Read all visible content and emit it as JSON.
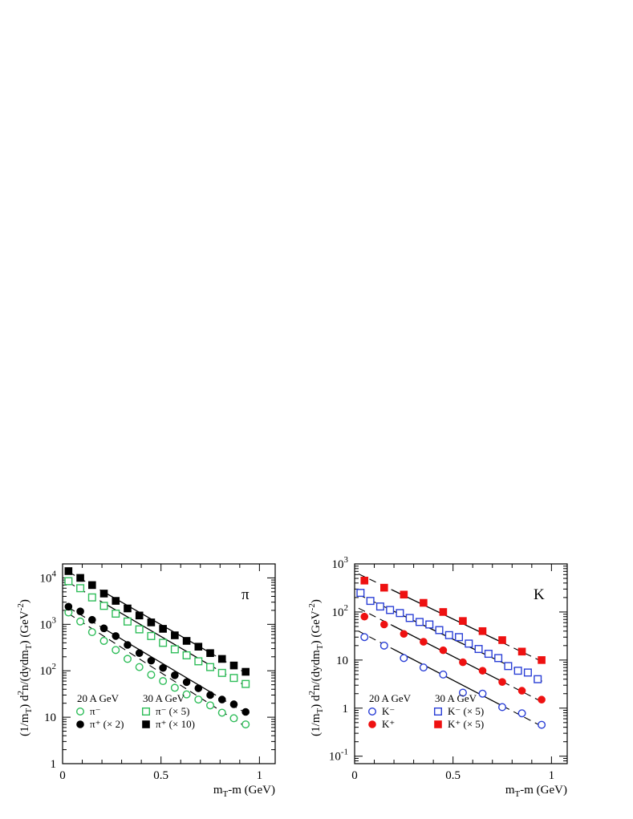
{
  "chart_data": [
    {
      "type": "scatter",
      "panel_label": "π",
      "xlabel": "m_T-m (GeV)",
      "ylabel": "(1/m_T) d²n/(dydm_T) (GeV⁻²)",
      "xlim": [
        0,
        1.08
      ],
      "ylim": [
        1,
        20000
      ],
      "y_scale": "log",
      "x_ticks": [
        0,
        0.5,
        1
      ],
      "x_tick_labels": [
        "0",
        "0.5",
        "1"
      ],
      "y_ticks": [
        1,
        10,
        100,
        1000,
        10000
      ],
      "y_tick_labels": [
        {
          "base": "1",
          "exp": ""
        },
        {
          "base": "10",
          "exp": ""
        },
        {
          "base": "10",
          "exp": "2"
        },
        {
          "base": "10",
          "exp": "3"
        },
        {
          "base": "10",
          "exp": "4"
        }
      ],
      "grid": false,
      "legend_placement": "bottom-left",
      "legend_groups": [
        "20 A GeV",
        "30 A GeV"
      ],
      "series": [
        {
          "name": "π⁻",
          "group": "20 A GeV",
          "marker": "circle-open",
          "color": "#2ebd59",
          "x": [
            0.03,
            0.09,
            0.15,
            0.21,
            0.27,
            0.33,
            0.39,
            0.45,
            0.51,
            0.57,
            0.63,
            0.69,
            0.75,
            0.81,
            0.87,
            0.93
          ],
          "values": [
            1800,
            1150,
            680,
            440,
            280,
            180,
            120,
            82,
            60,
            43,
            31,
            24,
            18,
            12.5,
            9.5,
            7
          ],
          "fit": {
            "x0": 0.03,
            "y0": 1700,
            "x1": 0.95,
            "y1": 5.5,
            "style": "dashed"
          }
        },
        {
          "name": "π⁺ (× 2)",
          "group": "20 A GeV",
          "marker": "circle-filled",
          "color": "#000000",
          "x": [
            0.03,
            0.09,
            0.15,
            0.21,
            0.27,
            0.33,
            0.39,
            0.45,
            0.51,
            0.57,
            0.63,
            0.69,
            0.75,
            0.81,
            0.87,
            0.93
          ],
          "values": [
            2400,
            1900,
            1250,
            820,
            560,
            360,
            240,
            165,
            115,
            80,
            57,
            42,
            30,
            24,
            19,
            13
          ],
          "fit": {
            "x0": 0.03,
            "y0": 2300,
            "x1": 0.95,
            "y1": 11,
            "style": "solid-dashed"
          }
        },
        {
          "name": "π⁻ (× 5)",
          "group": "30 A GeV",
          "marker": "square-open",
          "color": "#2ebd59",
          "x": [
            0.03,
            0.09,
            0.15,
            0.21,
            0.27,
            0.33,
            0.39,
            0.45,
            0.51,
            0.57,
            0.63,
            0.69,
            0.75,
            0.81,
            0.87,
            0.93
          ],
          "values": [
            8500,
            6000,
            3800,
            2500,
            1700,
            1150,
            780,
            560,
            400,
            290,
            215,
            160,
            120,
            90,
            70,
            52
          ],
          "fit": {
            "x0": 0.03,
            "y0": 8000,
            "x1": 0.95,
            "y1": 42,
            "style": "solid-dashed"
          }
        },
        {
          "name": "π⁺ (× 10)",
          "group": "30 A GeV",
          "marker": "square-filled",
          "color": "#000000",
          "x": [
            0.03,
            0.09,
            0.15,
            0.21,
            0.27,
            0.33,
            0.39,
            0.45,
            0.51,
            0.57,
            0.63,
            0.69,
            0.75,
            0.81,
            0.87,
            0.93
          ],
          "values": [
            14000,
            10000,
            7000,
            4600,
            3200,
            2200,
            1550,
            1100,
            800,
            580,
            440,
            330,
            240,
            180,
            130,
            95
          ],
          "fit": {
            "x0": 0.03,
            "y0": 13500,
            "x1": 0.95,
            "y1": 80,
            "style": "solid-dashed"
          }
        }
      ]
    },
    {
      "type": "scatter",
      "panel_label": "K",
      "xlabel": "m_T-m (GeV)",
      "ylabel": "(1/m_T) d²n/(dydm_T) (GeV⁻²)",
      "xlim": [
        0,
        1.08
      ],
      "ylim": [
        0.07,
        1000
      ],
      "y_scale": "log",
      "x_ticks": [
        0,
        0.5,
        1
      ],
      "x_tick_labels": [
        "0",
        "0.5",
        "1"
      ],
      "y_ticks": [
        0.1,
        1,
        10,
        100,
        1000
      ],
      "y_tick_labels": [
        {
          "base": "10",
          "exp": "-1"
        },
        {
          "base": "1",
          "exp": ""
        },
        {
          "base": "10",
          "exp": ""
        },
        {
          "base": "10",
          "exp": "2"
        },
        {
          "base": "10",
          "exp": "3"
        }
      ],
      "grid": false,
      "legend_placement": "bottom-left",
      "legend_groups": [
        "20 A GeV",
        "30 A GeV"
      ],
      "series": [
        {
          "name": "K⁻",
          "group": "20 A GeV",
          "marker": "circle-open",
          "color": "#2a3fd6",
          "x": [
            0.05,
            0.15,
            0.25,
            0.35,
            0.45,
            0.55,
            0.65,
            0.75,
            0.85,
            0.95
          ],
          "values": [
            30,
            20,
            11,
            7,
            5,
            2.1,
            2,
            1.05,
            0.78,
            0.45
          ],
          "fit": {
            "x0": 0.02,
            "y0": 40,
            "x1": 0.96,
            "y1": 0.4,
            "style": "solid-dashed"
          }
        },
        {
          "name": "K⁺",
          "group": "20 A GeV",
          "marker": "circle-filled",
          "color": "#ee1111",
          "x": [
            0.05,
            0.15,
            0.25,
            0.35,
            0.45,
            0.55,
            0.65,
            0.75,
            0.85,
            0.95
          ],
          "values": [
            80,
            55,
            35,
            24,
            16,
            9,
            6,
            3.5,
            2.3,
            1.5
          ],
          "fit": {
            "x0": 0.02,
            "y0": 120,
            "x1": 0.96,
            "y1": 1.3,
            "style": "solid-dashed"
          }
        },
        {
          "name": "K⁻ (× 5)",
          "group": "30 A GeV",
          "marker": "square-open",
          "color": "#2a3fd6",
          "x": [
            0.03,
            0.08,
            0.13,
            0.18,
            0.23,
            0.28,
            0.33,
            0.38,
            0.43,
            0.48,
            0.53,
            0.58,
            0.63,
            0.68,
            0.73,
            0.78,
            0.83,
            0.88,
            0.93
          ],
          "values": [
            250,
            170,
            130,
            110,
            95,
            75,
            62,
            55,
            42,
            33,
            30,
            22,
            17,
            13.5,
            11,
            7.5,
            6,
            5.5,
            4
          ],
          "fit": {
            "x0": 0.02,
            "y0": 230,
            "x1": 0.96,
            "y1": 3.5,
            "style": "solid-dashed"
          }
        },
        {
          "name": "K⁺ (× 5)",
          "group": "30 A GeV",
          "marker": "square-filled",
          "color": "#ee1111",
          "x": [
            0.05,
            0.15,
            0.25,
            0.35,
            0.45,
            0.55,
            0.65,
            0.75,
            0.85,
            0.95
          ],
          "values": [
            450,
            320,
            230,
            155,
            100,
            65,
            40,
            26,
            15,
            10
          ],
          "fit": {
            "x0": 0.02,
            "y0": 620,
            "x1": 0.96,
            "y1": 9,
            "style": "solid-dashed"
          }
        }
      ]
    }
  ]
}
